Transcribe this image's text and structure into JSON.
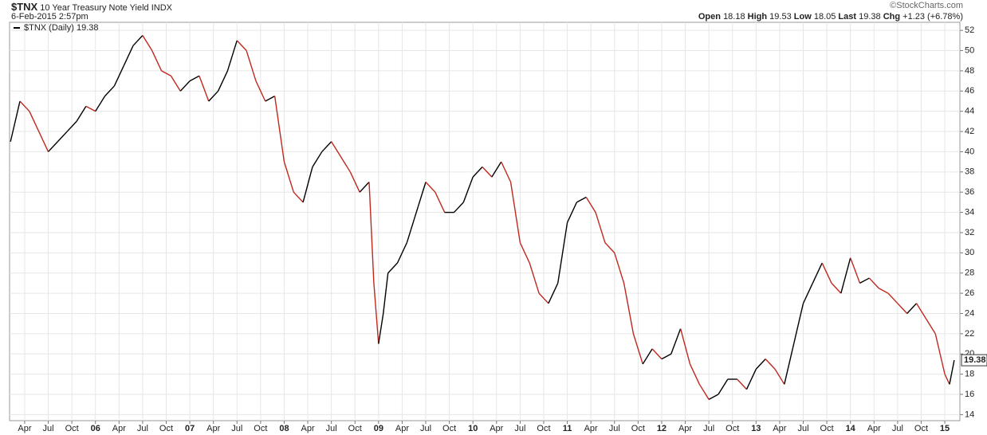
{
  "header": {
    "symbol": "$TNX",
    "name": "10 Year Treasury Note Yield",
    "exchange": "INDX",
    "date": "6-Feb-2015 2:57pm",
    "copyright": "©StockCharts.com",
    "quote": [
      {
        "label": "Open",
        "value": "18.18"
      },
      {
        "label": "High",
        "value": "19.53"
      },
      {
        "label": "Low",
        "value": "18.05"
      },
      {
        "label": "Last",
        "value": "19.38"
      },
      {
        "label": "Chg",
        "value": "+1.23 (+6.78%)"
      }
    ]
  },
  "chart_data": {
    "type": "line",
    "grid": true,
    "ylim": [
      13.4,
      52.8
    ],
    "xlim": [
      2005.09,
      2015.16
    ],
    "yticks": [
      14,
      16,
      18,
      20,
      22,
      24,
      26,
      28,
      30,
      32,
      34,
      36,
      38,
      40,
      42,
      44,
      46,
      48,
      50,
      52
    ],
    "xticks": [
      {
        "value": 2005.25,
        "label": "Apr"
      },
      {
        "value": 2005.5,
        "label": "Jul"
      },
      {
        "value": 2005.75,
        "label": "Oct"
      },
      {
        "value": 2006,
        "label": "06"
      },
      {
        "value": 2006.25,
        "label": "Apr"
      },
      {
        "value": 2006.5,
        "label": "Jul"
      },
      {
        "value": 2006.75,
        "label": "Oct"
      },
      {
        "value": 2007,
        "label": "07"
      },
      {
        "value": 2007.25,
        "label": "Apr"
      },
      {
        "value": 2007.5,
        "label": "Jul"
      },
      {
        "value": 2007.75,
        "label": "Oct"
      },
      {
        "value": 2008,
        "label": "08"
      },
      {
        "value": 2008.25,
        "label": "Apr"
      },
      {
        "value": 2008.5,
        "label": "Jul"
      },
      {
        "value": 2008.75,
        "label": "Oct"
      },
      {
        "value": 2009,
        "label": "09"
      },
      {
        "value": 2009.25,
        "label": "Apr"
      },
      {
        "value": 2009.5,
        "label": "Jul"
      },
      {
        "value": 2009.75,
        "label": "Oct"
      },
      {
        "value": 2010,
        "label": "10"
      },
      {
        "value": 2010.25,
        "label": "Apr"
      },
      {
        "value": 2010.5,
        "label": "Jul"
      },
      {
        "value": 2010.75,
        "label": "Oct"
      },
      {
        "value": 2011,
        "label": "11"
      },
      {
        "value": 2011.25,
        "label": "Apr"
      },
      {
        "value": 2011.5,
        "label": "Jul"
      },
      {
        "value": 2011.75,
        "label": "Oct"
      },
      {
        "value": 2012,
        "label": "12"
      },
      {
        "value": 2012.25,
        "label": "Apr"
      },
      {
        "value": 2012.5,
        "label": "Jul"
      },
      {
        "value": 2012.75,
        "label": "Oct"
      },
      {
        "value": 2013,
        "label": "13"
      },
      {
        "value": 2013.25,
        "label": "Apr"
      },
      {
        "value": 2013.5,
        "label": "Jul"
      },
      {
        "value": 2013.75,
        "label": "Oct"
      },
      {
        "value": 2014,
        "label": "14"
      },
      {
        "value": 2014.25,
        "label": "Apr"
      },
      {
        "value": 2014.5,
        "label": "Jul"
      },
      {
        "value": 2014.75,
        "label": "Oct"
      },
      {
        "value": 2015,
        "label": "15"
      }
    ],
    "x": [
      2005.1,
      2005.2,
      2005.3,
      2005.4,
      2005.5,
      2005.6,
      2005.7,
      2005.8,
      2005.9,
      2006.0,
      2006.1,
      2006.2,
      2006.3,
      2006.4,
      2006.5,
      2006.6,
      2006.7,
      2006.8,
      2006.9,
      2007.0,
      2007.1,
      2007.2,
      2007.3,
      2007.4,
      2007.5,
      2007.6,
      2007.7,
      2007.8,
      2007.9,
      2008.0,
      2008.1,
      2008.2,
      2008.3,
      2008.4,
      2008.5,
      2008.6,
      2008.7,
      2008.8,
      2008.9,
      2008.95,
      2009.0,
      2009.05,
      2009.1,
      2009.2,
      2009.3,
      2009.4,
      2009.5,
      2009.6,
      2009.7,
      2009.8,
      2009.9,
      2010.0,
      2010.1,
      2010.2,
      2010.3,
      2010.4,
      2010.5,
      2010.6,
      2010.7,
      2010.8,
      2010.9,
      2011.0,
      2011.1,
      2011.2,
      2011.3,
      2011.4,
      2011.5,
      2011.6,
      2011.7,
      2011.8,
      2011.9,
      2012.0,
      2012.1,
      2012.2,
      2012.3,
      2012.4,
      2012.5,
      2012.6,
      2012.7,
      2012.8,
      2012.9,
      2013.0,
      2013.1,
      2013.2,
      2013.3,
      2013.4,
      2013.5,
      2013.6,
      2013.7,
      2013.8,
      2013.9,
      2014.0,
      2014.1,
      2014.2,
      2014.3,
      2014.4,
      2014.5,
      2014.6,
      2014.7,
      2014.8,
      2014.9,
      2015.0,
      2015.05,
      2015.1
    ],
    "series": [
      {
        "name": "$TNX (Daily)",
        "color": "#c0281e",
        "up_color": "#000000",
        "values": [
          41,
          45,
          44,
          42,
          40,
          41,
          42,
          43,
          44.5,
          44,
          45.5,
          46.5,
          48.5,
          50.5,
          51.5,
          50,
          48,
          47.5,
          46,
          47,
          47.5,
          45,
          46,
          48,
          51,
          50,
          47,
          45,
          45.5,
          39,
          36,
          35,
          38.5,
          40,
          41,
          39.5,
          38,
          36,
          37,
          27,
          21,
          24,
          28,
          29,
          31,
          34,
          37,
          36,
          34,
          34,
          35,
          37.5,
          38.5,
          37.5,
          39,
          37,
          31,
          29,
          26,
          25,
          27,
          33,
          35,
          35.5,
          34,
          31,
          30,
          27,
          22,
          19,
          20.5,
          19.5,
          20,
          22.5,
          19,
          17,
          15.5,
          16,
          17.5,
          17.5,
          16.5,
          18.5,
          19.5,
          18.5,
          17,
          21,
          25,
          27,
          29,
          27,
          26,
          29.5,
          27,
          27.5,
          26.5,
          26,
          25,
          24,
          25,
          23.5,
          22,
          18,
          17,
          19.38
        ]
      }
    ]
  }
}
